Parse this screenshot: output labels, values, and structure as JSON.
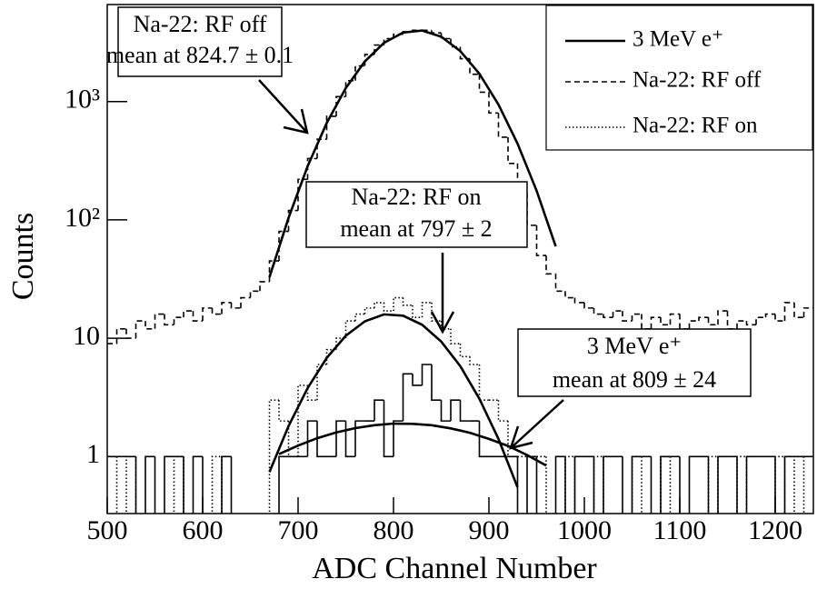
{
  "chart_data": {
    "type": "histogram",
    "x_label": "ADC Channel Number",
    "y_label": "Counts",
    "log_y": true,
    "xlim": [
      500,
      1240
    ],
    "ylim": [
      0.33,
      6600
    ],
    "xticks": [
      500,
      600,
      700,
      800,
      900,
      1000,
      1100,
      1200
    ],
    "yticks": [
      1,
      10,
      {
        "value": 100,
        "label": "10²"
      },
      {
        "value": 1000,
        "label": "10³"
      }
    ],
    "bins": [
      500,
      510,
      520,
      530,
      540,
      550,
      560,
      570,
      580,
      590,
      600,
      610,
      620,
      630,
      640,
      650,
      660,
      670,
      680,
      690,
      700,
      710,
      720,
      730,
      740,
      750,
      760,
      770,
      780,
      790,
      800,
      810,
      820,
      830,
      840,
      850,
      860,
      870,
      880,
      890,
      900,
      910,
      920,
      930,
      940,
      950,
      960,
      970,
      980,
      990,
      1000,
      1010,
      1020,
      1030,
      1040,
      1050,
      1060,
      1070,
      1080,
      1090,
      1100,
      1110,
      1120,
      1130,
      1140,
      1150,
      1160,
      1170,
      1180,
      1190,
      1200,
      1210,
      1220,
      1230,
      1240
    ],
    "series": [
      {
        "name": "3 MeV e⁺",
        "dash": "solid",
        "color": "#000000",
        "values": [
          1,
          1,
          1,
          0,
          1,
          0,
          1,
          1,
          0,
          1,
          0,
          0,
          1,
          0,
          0,
          0,
          0,
          0,
          1,
          1,
          1,
          2,
          1,
          1,
          2,
          1,
          2,
          2,
          3,
          1,
          2,
          5,
          4,
          6,
          3,
          2,
          3,
          2,
          2,
          1,
          1,
          1,
          1,
          0,
          1,
          0,
          0,
          1,
          0,
          1,
          1,
          0,
          1,
          1,
          0,
          1,
          1,
          0,
          1,
          1,
          0,
          1,
          1,
          0,
          1,
          1,
          0,
          1,
          1,
          1,
          0,
          1,
          1,
          1
        ]
      },
      {
        "name": "Na-22: RF off",
        "dash": "dashed",
        "color": "#000000",
        "values": [
          9,
          12,
          10,
          14,
          12,
          16,
          13,
          15,
          17,
          14,
          18,
          16,
          20,
          18,
          22,
          25,
          30,
          45,
          80,
          120,
          220,
          330,
          480,
          750,
          1100,
          1500,
          2000,
          2500,
          3000,
          3400,
          3700,
          3900,
          4000,
          4000,
          3800,
          3400,
          2900,
          2300,
          1700,
          1200,
          800,
          500,
          300,
          170,
          90,
          50,
          35,
          25,
          22,
          20,
          18,
          16,
          15,
          17,
          14,
          16,
          12,
          15,
          13,
          16,
          12,
          14,
          15,
          13,
          17,
          12,
          14,
          13,
          15,
          16,
          14,
          20,
          15,
          18
        ]
      },
      {
        "name": "Na-22: RF on",
        "dash": "dotted",
        "color": "#000000",
        "values": [
          1,
          0,
          1,
          0,
          0,
          0,
          0,
          1,
          0,
          0,
          0,
          1,
          0,
          0,
          0,
          0,
          0,
          3,
          2,
          1,
          4,
          3,
          6,
          8,
          10,
          14,
          16,
          18,
          20,
          17,
          22,
          19,
          15,
          20,
          14,
          12,
          9,
          7,
          6,
          3,
          3,
          2,
          1,
          1,
          1,
          1,
          0,
          0,
          1,
          0,
          0,
          1,
          0,
          0,
          0,
          1,
          0,
          0,
          1,
          0,
          0,
          0,
          0,
          1,
          0,
          0,
          1,
          0,
          0,
          0,
          1,
          0,
          1,
          0
        ]
      }
    ],
    "fits": [
      {
        "x": [
          670,
          690,
          710,
          730,
          750,
          770,
          790,
          810,
          830,
          850,
          870,
          890,
          910,
          930,
          950,
          970
        ],
        "values": [
          32.8,
          104,
          284,
          658,
          1299,
          2184,
          3131,
          3824,
          3980,
          3530,
          2668,
          1718,
          943,
          441,
          176,
          59.7
        ]
      },
      {
        "x": [
          670,
          690,
          710,
          730,
          750,
          770,
          790,
          810,
          830,
          850,
          870,
          890,
          910,
          930
        ],
        "values": [
          0.74,
          1.81,
          3.79,
          6.81,
          10.5,
          13.9,
          15.9,
          15.5,
          13.0,
          9.37,
          5.81,
          3.08,
          1.41,
          0.55
        ]
      },
      {
        "x": [
          680,
          700,
          720,
          740,
          760,
          780,
          800,
          820,
          840,
          860,
          880,
          900,
          920,
          940,
          960
        ],
        "values": [
          1.05,
          1.24,
          1.43,
          1.6,
          1.74,
          1.84,
          1.9,
          1.89,
          1.84,
          1.73,
          1.59,
          1.41,
          1.23,
          1.03,
          0.84
        ]
      }
    ],
    "annotations": [
      {
        "lines": [
          "Na-22: RF off",
          "mean at 824.7 ± 0.1"
        ]
      },
      {
        "lines": [
          "Na-22: RF on",
          "mean at 797 ± 2"
        ]
      },
      {
        "lines": [
          "3 MeV e⁺",
          "mean at 809 ± 24"
        ]
      }
    ]
  }
}
